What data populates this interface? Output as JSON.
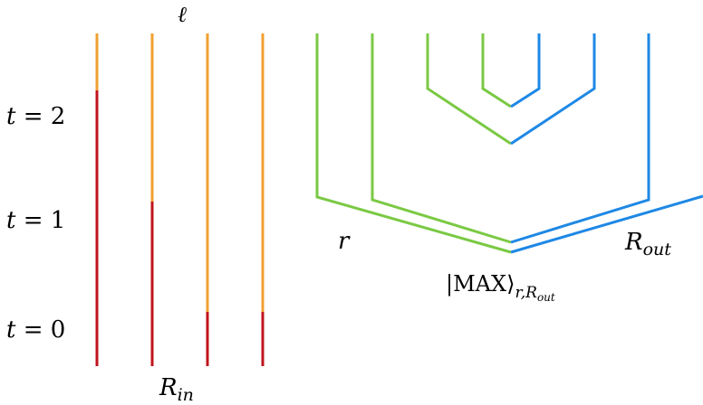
{
  "colors": {
    "red": "#c0141c",
    "orange": "#f0a030",
    "green": "#7ac943",
    "blue": "#1e88e5",
    "text": "#000000"
  },
  "labels": {
    "ell": "ℓ",
    "t2_var": "t",
    "t2_rest": " = 2",
    "t1_var": "t",
    "t1_rest": " = 1",
    "t0_var": "t",
    "t0_rest": " = 0",
    "r": "r",
    "rout_base": "R",
    "rout_sub": "out",
    "rin_base": "R",
    "rin_sub": "in",
    "max_ket": "|MAX⟩",
    "max_sub_r": "r,",
    "max_sub_R": "R",
    "max_sub_out": "out"
  }
}
